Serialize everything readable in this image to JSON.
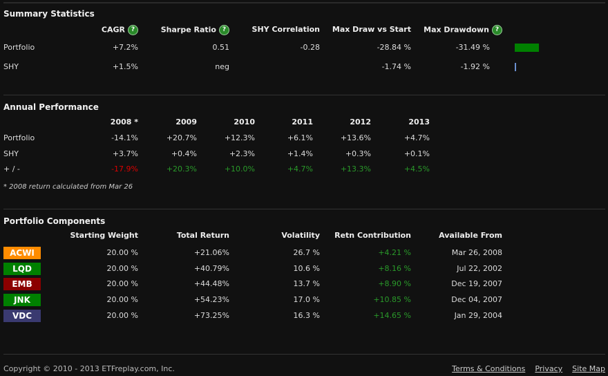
{
  "summary": {
    "title": "Summary Statistics",
    "headers": [
      "CAGR",
      "Sharpe Ratio",
      "SHY Correlation",
      "Max Draw vs Start",
      "Max Drawdown"
    ],
    "rows": [
      {
        "label": "Portfolio",
        "values": [
          "+7.2%",
          "0.51",
          "-0.28",
          "-28.84 %",
          "-31.49 %"
        ],
        "drawdown_pct": 31.49,
        "bar_color": "#008000"
      },
      {
        "label": "SHY",
        "values": [
          "+1.5%",
          "neg",
          "",
          "-1.74 %",
          "-1.92 %"
        ],
        "drawdown_pct": 1.92,
        "bar_color": "#6a8fd0"
      }
    ]
  },
  "annual": {
    "title": "Annual Performance",
    "headers": [
      "2008 *",
      "2009",
      "2010",
      "2011",
      "2012",
      "2013"
    ],
    "rows": [
      {
        "label": "Portfolio",
        "values": [
          "-14.1%",
          "+20.7%",
          "+12.3%",
          "+6.1%",
          "+13.6%",
          "+4.7%"
        ]
      },
      {
        "label": "SHY",
        "values": [
          "+3.7%",
          "+0.4%",
          "+2.3%",
          "+1.4%",
          "+0.3%",
          "+0.1%"
        ]
      },
      {
        "label": "+ / -",
        "values": [
          "-17.9%",
          "+20.3%",
          "+10.0%",
          "+4.7%",
          "+13.3%",
          "+4.5%"
        ]
      }
    ],
    "note": "* 2008 return calculated from Mar 26"
  },
  "components": {
    "title": "Portfolio Components",
    "headers": [
      "Starting Weight",
      "Total Return",
      "Volatility",
      "Retn Contribution",
      "Available From"
    ],
    "rows": [
      {
        "ticker": "ACWI",
        "color": "#ff8c00",
        "values": [
          "20.00 %",
          "+21.06%",
          "26.7 %",
          "+4.21 %",
          "Mar 26, 2008"
        ]
      },
      {
        "ticker": "LQD",
        "color": "#008000",
        "values": [
          "20.00 %",
          "+40.79%",
          "10.6 %",
          "+8.16 %",
          "Jul 22, 2002"
        ]
      },
      {
        "ticker": "EMB",
        "color": "#8b0000",
        "values": [
          "20.00 %",
          "+44.48%",
          "13.7 %",
          "+8.90 %",
          "Dec 19, 2007"
        ]
      },
      {
        "ticker": "JNK",
        "color": "#008000",
        "values": [
          "20.00 %",
          "+54.23%",
          "17.0 %",
          "+10.85 %",
          "Dec 04, 2007"
        ]
      },
      {
        "ticker": "VDC",
        "color": "#3a3a70",
        "values": [
          "20.00 %",
          "+73.25%",
          "16.3 %",
          "+14.65 %",
          "Jan 29, 2004"
        ]
      }
    ]
  },
  "footer": {
    "copyright": "Copyright © 2010 - 2013 ETFreplay.com, Inc.",
    "links": [
      "Terms & Conditions",
      "Privacy",
      "Site Map"
    ]
  }
}
